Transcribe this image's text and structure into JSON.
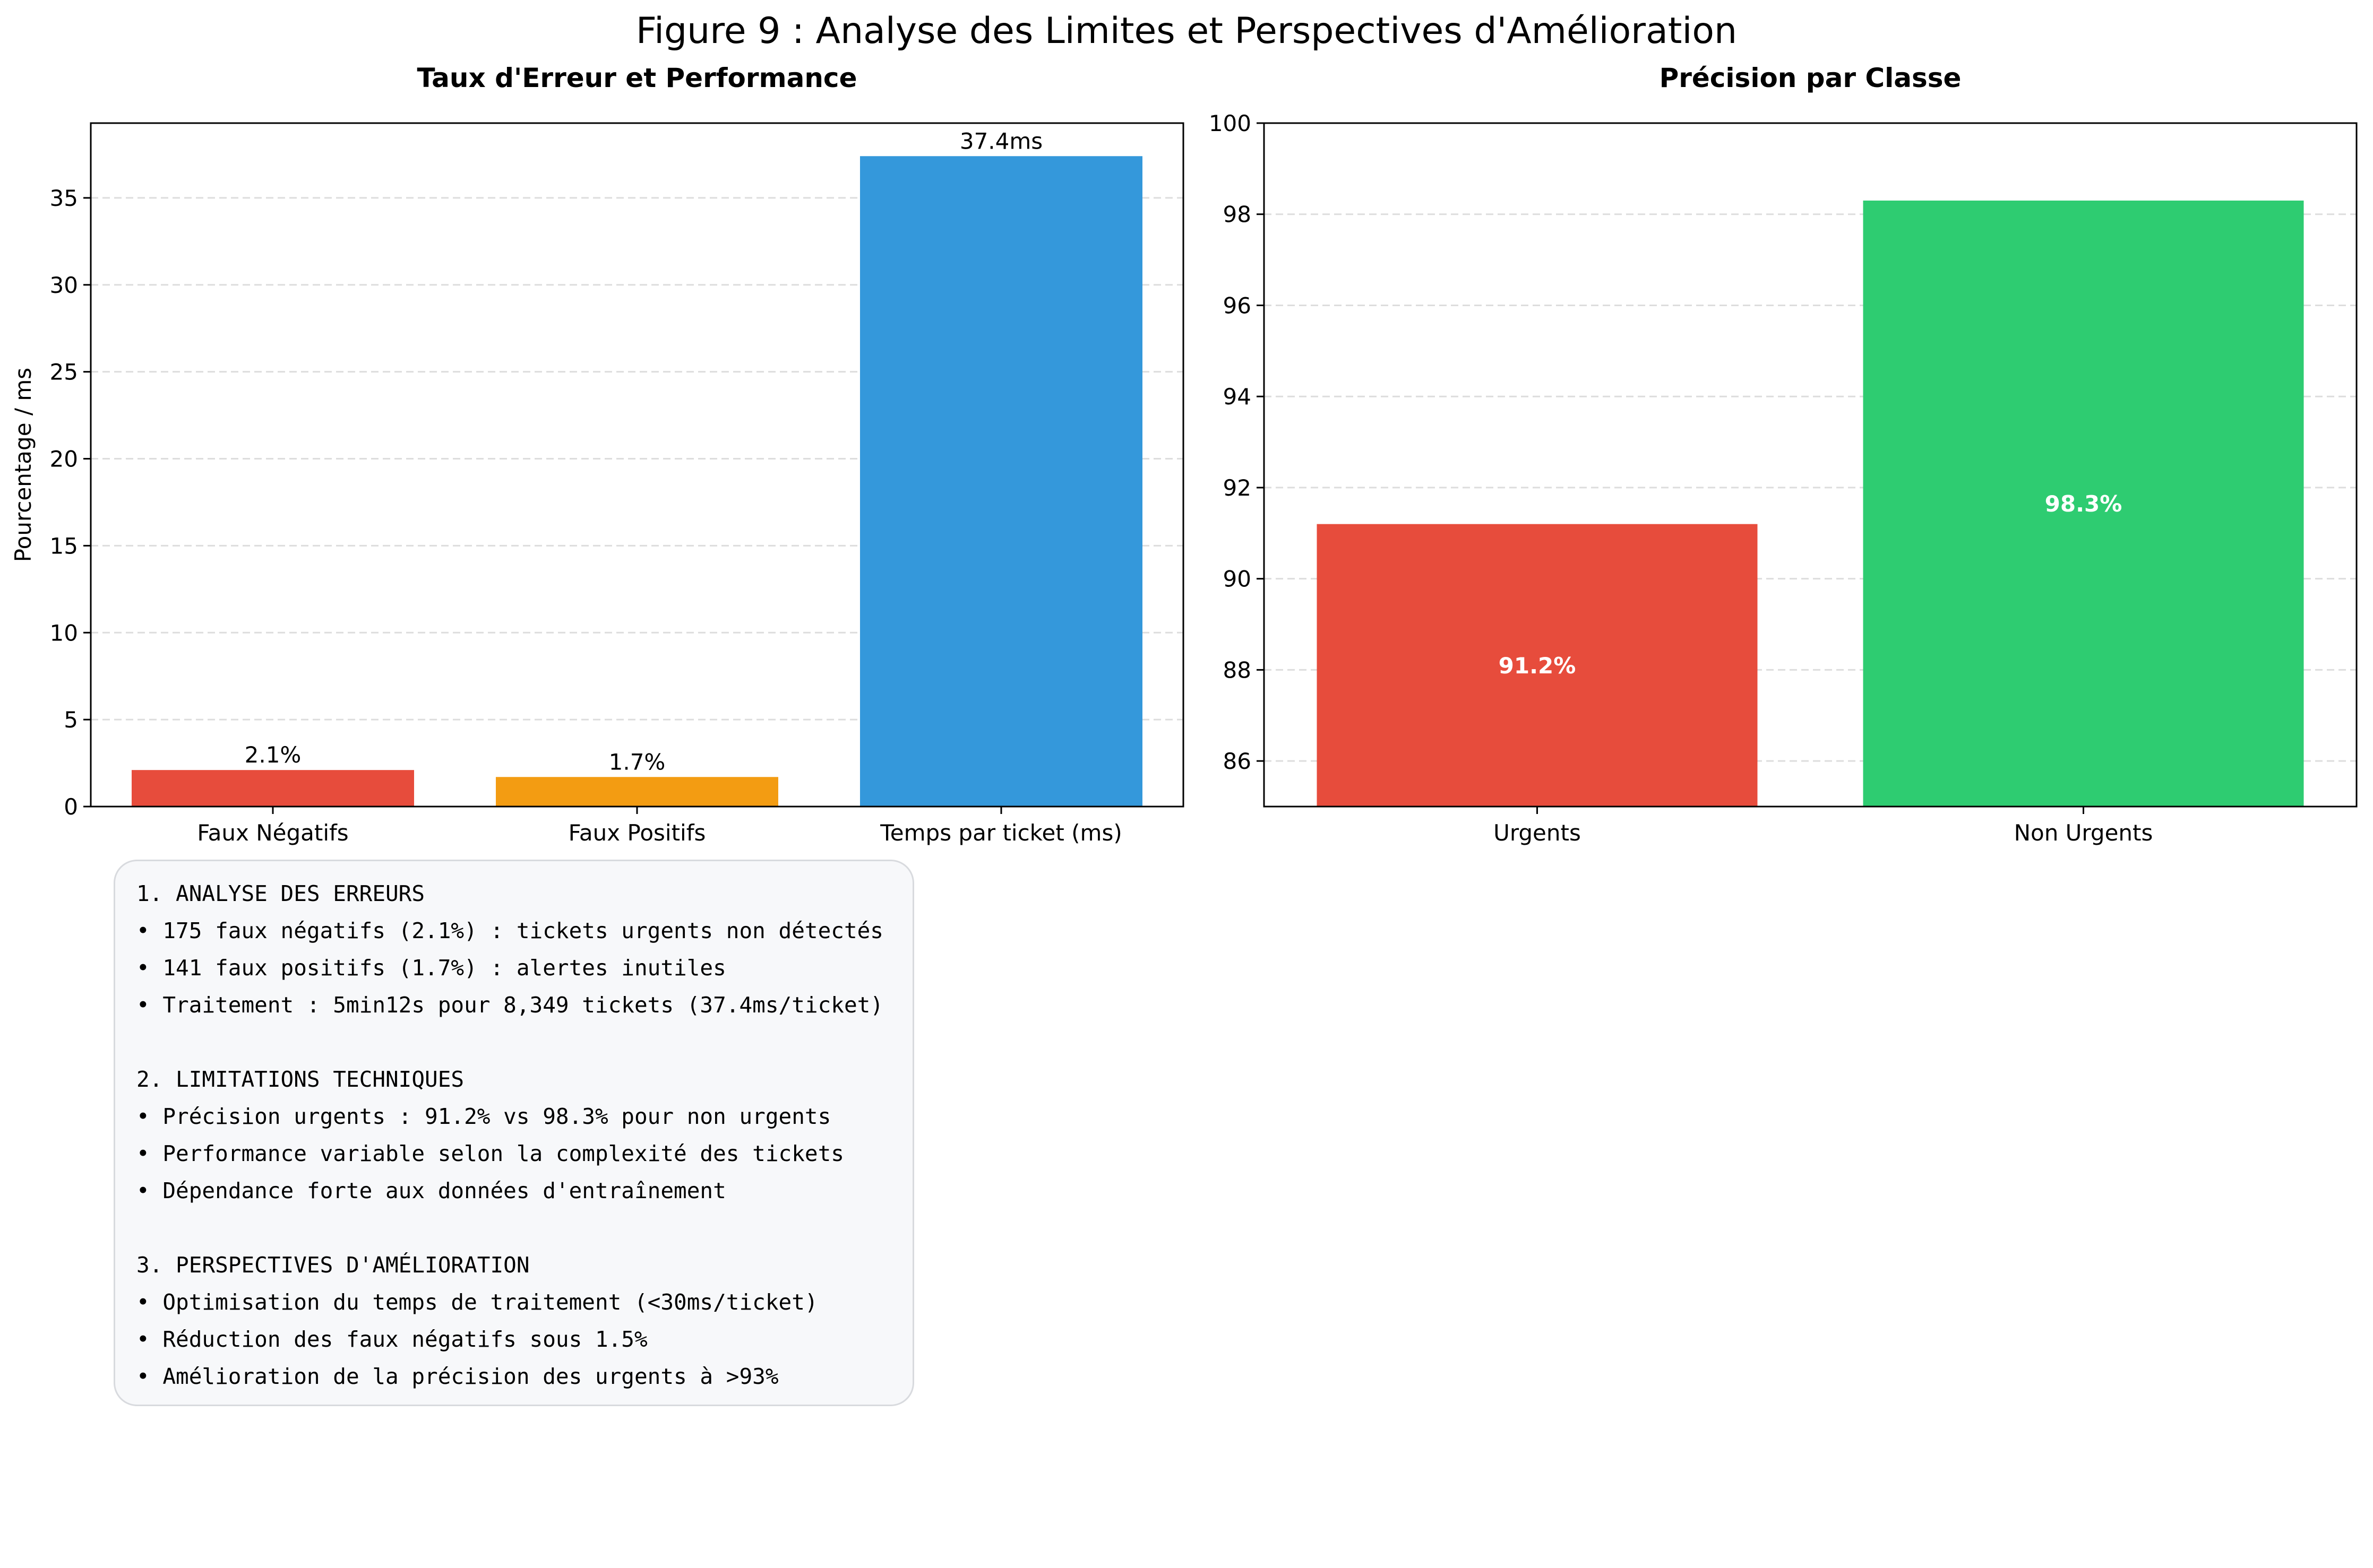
{
  "figure_title": "Figure 9 : Analyse des Limites et Perspectives d'Amélioration",
  "chart_data": [
    {
      "type": "bar",
      "title": "Taux d'Erreur et Performance",
      "xlabel": "",
      "ylabel": "Pourcentage / ms",
      "categories": [
        "Faux Négatifs",
        "Faux Positifs",
        "Temps par ticket (ms)"
      ],
      "values": [
        2.1,
        1.7,
        37.4
      ],
      "data_labels": [
        "2.1%",
        "1.7%",
        "37.4ms"
      ],
      "colors": [
        "#e74c3c",
        "#f39c12",
        "#3498db"
      ],
      "ylim": [
        0,
        39.3
      ],
      "yticks": [
        0,
        5,
        10,
        15,
        20,
        25,
        30,
        35
      ],
      "grid": true
    },
    {
      "type": "bar",
      "title": "Précision par Classe",
      "xlabel": "",
      "ylabel": "",
      "categories": [
        "Urgents",
        "Non Urgents"
      ],
      "values": [
        91.2,
        98.3
      ],
      "data_labels": [
        "91.2%",
        "98.3%"
      ],
      "colors": [
        "#e74c3c",
        "#2ecc71"
      ],
      "ylim": [
        85,
        100
      ],
      "yticks": [
        86,
        88,
        90,
        92,
        94,
        96,
        98,
        100
      ],
      "grid": true
    }
  ],
  "notes": [
    "1. ANALYSE DES ERREURS",
    "• 175 faux négatifs (2.1%) : tickets urgents non détectés",
    "• 141 faux positifs (1.7%) : alertes inutiles",
    "• Traitement : 5min12s pour 8,349 tickets (37.4ms/ticket)",
    "",
    "2. LIMITATIONS TECHNIQUES",
    "• Précision urgents : 91.2% vs 98.3% pour non urgents",
    "• Performance variable selon la complexité des tickets",
    "• Dépendance forte aux données d'entraînement",
    "",
    "3. PERSPECTIVES D'AMÉLIORATION",
    "• Optimisation du temps de traitement (<30ms/ticket)",
    "• Réduction des faux négatifs sous 1.5%",
    "• Amélioration de la précision des urgents à >93%"
  ]
}
